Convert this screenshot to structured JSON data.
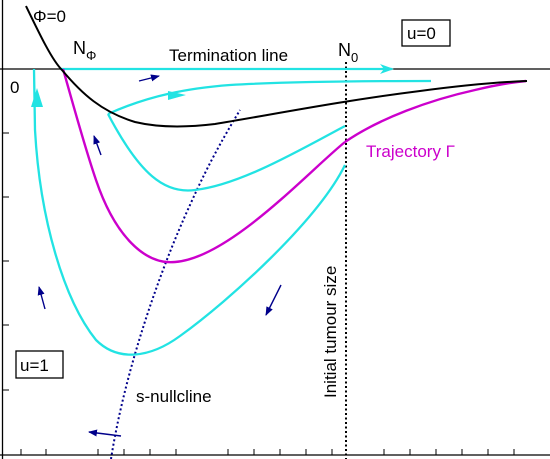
{
  "labels": {
    "phi_zero": "Φ=0",
    "n_phi_main": "N",
    "n_phi_sub": "Φ",
    "termination_line": "Termination line",
    "n0_main": "N",
    "n0_sub": "0",
    "zero": "0",
    "u_zero": "u=0",
    "u_one": "u=1",
    "trajectory": "Trajectory Γ",
    "s_nullcline": "s-nullcline",
    "initial_tumour_size": "Initial tumour size"
  },
  "colors": {
    "cyan": "#22e3e3",
    "magenta": "#cc00cc",
    "black": "#000000",
    "navy": "#00008b",
    "trajectory_text": "#cc00cc"
  }
}
